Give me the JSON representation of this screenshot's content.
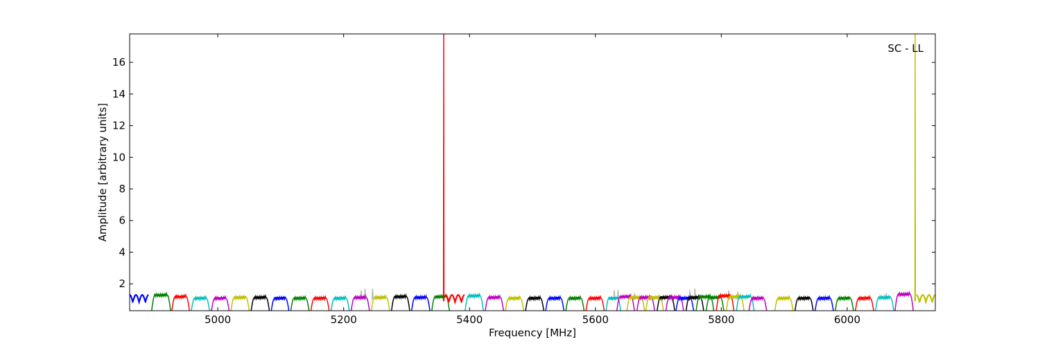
{
  "chart_data": {
    "type": "line",
    "annotation": "SC - LL",
    "xlabel": "Frequency [MHz]",
    "ylabel": "Amplitude [arbitrary units]",
    "xlim": [
      4860,
      6140
    ],
    "ylim": [
      0.3,
      17.8
    ],
    "xticks": [
      5000,
      5200,
      5400,
      5600,
      5800,
      6000
    ],
    "yticks": [
      2,
      4,
      6,
      8,
      10,
      12,
      14,
      16
    ],
    "grid": false,
    "legend": "none",
    "colors": [
      "#0000ff",
      "#008000",
      "#ff0000",
      "#00bfbf",
      "#bf00bf",
      "#bfbf00",
      "#000000"
    ],
    "background_trace_color": "#bbbbbb",
    "bands": [
      {
        "start": 4860,
        "end": 4890,
        "peak": 1.3,
        "color": "#0000ff",
        "shape": "ripple"
      },
      {
        "start": 4895,
        "end": 4925,
        "peak": 1.4,
        "color": "#008000"
      },
      {
        "start": 4927,
        "end": 4955,
        "peak": 1.3,
        "color": "#ff0000"
      },
      {
        "start": 4958,
        "end": 4987,
        "peak": 1.2,
        "color": "#00bfbf"
      },
      {
        "start": 4990,
        "end": 5018,
        "peak": 1.2,
        "color": "#bf00bf"
      },
      {
        "start": 5021,
        "end": 5050,
        "peak": 1.25,
        "color": "#bfbf00"
      },
      {
        "start": 5053,
        "end": 5082,
        "peak": 1.25,
        "color": "#000000"
      },
      {
        "start": 5085,
        "end": 5113,
        "peak": 1.2,
        "color": "#0000ff"
      },
      {
        "start": 5116,
        "end": 5145,
        "peak": 1.2,
        "color": "#008000"
      },
      {
        "start": 5148,
        "end": 5177,
        "peak": 1.2,
        "color": "#ff0000"
      },
      {
        "start": 5180,
        "end": 5209,
        "peak": 1.2,
        "color": "#00bfbf"
      },
      {
        "start": 5212,
        "end": 5241,
        "peak": 1.25,
        "color": "#bf00bf"
      },
      {
        "start": 5244,
        "end": 5273,
        "peak": 1.25,
        "color": "#bfbf00"
      },
      {
        "start": 5276,
        "end": 5305,
        "peak": 1.3,
        "color": "#000000"
      },
      {
        "start": 5308,
        "end": 5337,
        "peak": 1.25,
        "color": "#0000ff"
      },
      {
        "start": 5340,
        "end": 5368,
        "peak": 1.3,
        "color": "#008000"
      },
      {
        "start": 5362,
        "end": 5392,
        "peak": 1.3,
        "color": "#ff0000",
        "shape": "ripple"
      },
      {
        "start": 5393,
        "end": 5422,
        "peak": 1.35,
        "color": "#00bfbf"
      },
      {
        "start": 5425,
        "end": 5454,
        "peak": 1.25,
        "color": "#bf00bf"
      },
      {
        "start": 5457,
        "end": 5486,
        "peak": 1.2,
        "color": "#bfbf00"
      },
      {
        "start": 5489,
        "end": 5518,
        "peak": 1.2,
        "color": "#000000"
      },
      {
        "start": 5521,
        "end": 5550,
        "peak": 1.2,
        "color": "#0000ff"
      },
      {
        "start": 5553,
        "end": 5582,
        "peak": 1.2,
        "color": "#008000"
      },
      {
        "start": 5585,
        "end": 5614,
        "peak": 1.2,
        "color": "#ff0000"
      },
      {
        "start": 5617,
        "end": 5640,
        "peak": 1.2,
        "color": "#00bfbf"
      },
      {
        "start": 5634,
        "end": 5662,
        "peak": 1.3,
        "color": "#bf00bf"
      },
      {
        "start": 5650,
        "end": 5678,
        "peak": 1.25,
        "color": "#bfbf00"
      },
      {
        "start": 5666,
        "end": 5694,
        "peak": 1.25,
        "color": "#bf00bf"
      },
      {
        "start": 5680,
        "end": 5708,
        "peak": 1.25,
        "color": "#bfbf00"
      },
      {
        "start": 5698,
        "end": 5726,
        "peak": 1.25,
        "color": "#000000"
      },
      {
        "start": 5712,
        "end": 5740,
        "peak": 1.25,
        "color": "#bf00bf"
      },
      {
        "start": 5728,
        "end": 5756,
        "peak": 1.2,
        "color": "#0000ff"
      },
      {
        "start": 5744,
        "end": 5772,
        "peak": 1.25,
        "color": "#000000"
      },
      {
        "start": 5760,
        "end": 5788,
        "peak": 1.3,
        "color": "#008000"
      },
      {
        "start": 5776,
        "end": 5804,
        "peak": 1.25,
        "color": "#008000"
      },
      {
        "start": 5792,
        "end": 5820,
        "peak": 1.35,
        "color": "#ff0000"
      },
      {
        "start": 5808,
        "end": 5836,
        "peak": 1.3,
        "color": "#bfbf00"
      },
      {
        "start": 5824,
        "end": 5852,
        "peak": 1.3,
        "color": "#00bfbf"
      },
      {
        "start": 5844,
        "end": 5872,
        "peak": 1.2,
        "color": "#bf00bf"
      },
      {
        "start": 5885,
        "end": 5914,
        "peak": 1.2,
        "color": "#bfbf00"
      },
      {
        "start": 5917,
        "end": 5946,
        "peak": 1.2,
        "color": "#000000"
      },
      {
        "start": 5949,
        "end": 5978,
        "peak": 1.2,
        "color": "#0000ff"
      },
      {
        "start": 5981,
        "end": 6010,
        "peak": 1.2,
        "color": "#008000"
      },
      {
        "start": 6013,
        "end": 6042,
        "peak": 1.2,
        "color": "#ff0000"
      },
      {
        "start": 6045,
        "end": 6074,
        "peak": 1.25,
        "color": "#00bfbf"
      },
      {
        "start": 6076,
        "end": 6105,
        "peak": 1.45,
        "color": "#bf00bf"
      },
      {
        "start": 6110,
        "end": 6140,
        "peak": 1.3,
        "color": "#bfbf00",
        "shape": "ripple"
      }
    ],
    "spikes": [
      {
        "x": 5359,
        "peak": 17.8,
        "color": "#ff0000"
      },
      {
        "x": 6108,
        "peak": 17.8,
        "color": "#bfbf00"
      }
    ],
    "gray_spikes": [
      {
        "x": 5228,
        "peak": 1.6
      },
      {
        "x": 5234,
        "peak": 1.7
      },
      {
        "x": 5246,
        "peak": 1.7
      },
      {
        "x": 5630,
        "peak": 1.6
      },
      {
        "x": 5636,
        "peak": 1.6
      },
      {
        "x": 5662,
        "peak": 1.4
      },
      {
        "x": 5750,
        "peak": 1.6
      },
      {
        "x": 5758,
        "peak": 1.7
      },
      {
        "x": 5812,
        "peak": 1.6
      },
      {
        "x": 5826,
        "peak": 1.5
      },
      {
        "x": 6062,
        "peak": 1.4
      }
    ]
  }
}
